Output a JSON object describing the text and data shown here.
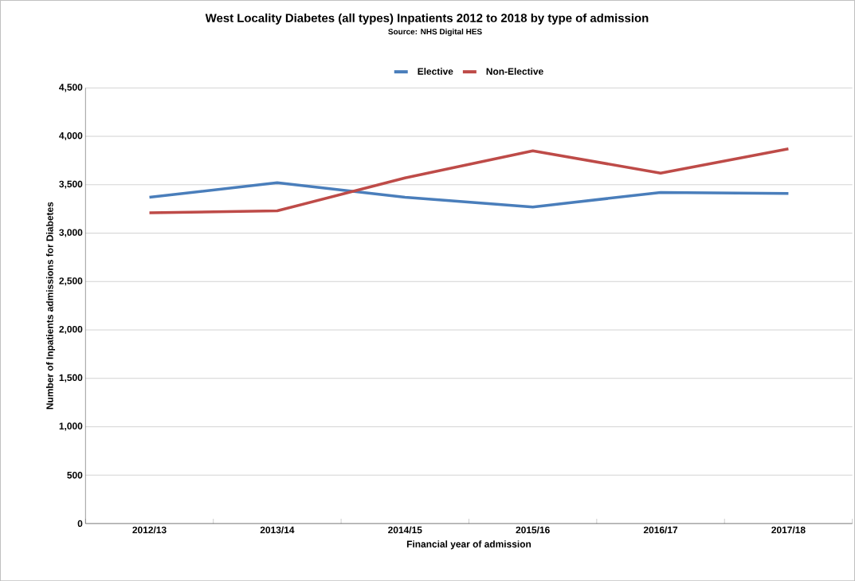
{
  "chart_data": {
    "type": "line",
    "title": "West Locality Diabetes (all types) Inpatients 2012 to 2018 by type of admission",
    "subtitle": "Source: NHS Digital HES",
    "xlabel": "Financial year of admission",
    "ylabel": "Number of Inpatients admissions for Diabetes",
    "categories": [
      "2012/13",
      "2013/14",
      "2014/15",
      "2015/16",
      "2016/17",
      "2017/18"
    ],
    "series": [
      {
        "name": "Elective",
        "color": "#4a7ebb",
        "values": [
          3370,
          3520,
          3370,
          3270,
          3420,
          3410
        ]
      },
      {
        "name": "Non-Elective",
        "color": "#be4b48",
        "values": [
          3210,
          3230,
          3570,
          3850,
          3620,
          3870
        ]
      }
    ],
    "ylim": [
      0,
      4500
    ],
    "yticks": [
      {
        "value": 0,
        "label": "0"
      },
      {
        "value": 500,
        "label": "500"
      },
      {
        "value": 1000,
        "label": "1,000"
      },
      {
        "value": 1500,
        "label": "1,500"
      },
      {
        "value": 2000,
        "label": "2,000"
      },
      {
        "value": 2500,
        "label": "2,500"
      },
      {
        "value": 3000,
        "label": "3,000"
      },
      {
        "value": 3500,
        "label": "3,500"
      },
      {
        "value": 4000,
        "label": "4,000"
      },
      {
        "value": 4500,
        "label": "4,500"
      }
    ],
    "grid": "y",
    "legend": "top",
    "marker": "none",
    "line_style": "solid"
  }
}
